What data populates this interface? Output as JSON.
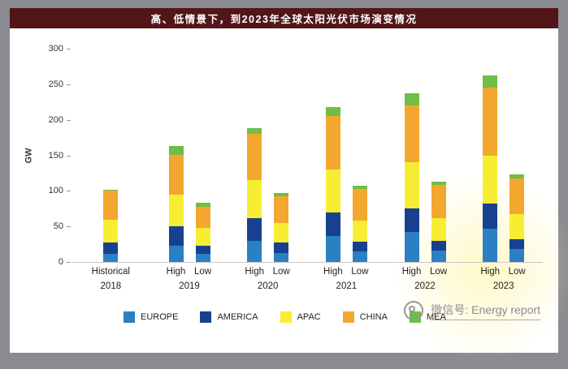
{
  "header": {
    "title": "高、低情景下，到2023年全球太阳光伏市场演变情况"
  },
  "chart_data": {
    "type": "bar",
    "stacked": true,
    "title": "高、低情景下，到2023年全球太阳光伏市场演变情况",
    "ylabel": "GW",
    "xlabel": "",
    "ylim": [
      0,
      300
    ],
    "yticks": [
      0,
      50,
      100,
      150,
      200,
      250,
      300
    ],
    "grid": false,
    "legend_position": "bottom",
    "series": [
      "EUROPE",
      "AMERICA",
      "APAC",
      "CHINA",
      "MEA"
    ],
    "colors": {
      "EUROPE": "#2b80c4",
      "AMERICA": "#17418f",
      "APAC": "#f7ee33",
      "CHINA": "#f3a72f",
      "MEA": "#6fbe45"
    },
    "groups": [
      {
        "year": "2018",
        "bars": [
          {
            "label": "Historical",
            "values": [
              11,
              16,
              33,
              40,
              2
            ]
          }
        ]
      },
      {
        "year": "2019",
        "bars": [
          {
            "label": "High",
            "values": [
              23,
              27,
              45,
              55,
              13
            ]
          },
          {
            "label": "Low",
            "values": [
              12,
              11,
              25,
              30,
              5
            ]
          }
        ]
      },
      {
        "year": "2020",
        "bars": [
          {
            "label": "High",
            "values": [
              30,
              32,
              53,
              65,
              8
            ]
          },
          {
            "label": "Low",
            "values": [
              13,
              14,
              28,
              38,
              4
            ]
          }
        ]
      },
      {
        "year": "2021",
        "bars": [
          {
            "label": "High",
            "values": [
              37,
              33,
              60,
              75,
              13
            ]
          },
          {
            "label": "Low",
            "values": [
              15,
              13,
              30,
              45,
              4
            ]
          }
        ]
      },
      {
        "year": "2022",
        "bars": [
          {
            "label": "High",
            "values": [
              42,
              33,
              65,
              80,
              17
            ]
          },
          {
            "label": "Low",
            "values": [
              16,
              14,
              32,
              46,
              5
            ]
          }
        ]
      },
      {
        "year": "2023",
        "bars": [
          {
            "label": "High",
            "values": [
              47,
              35,
              68,
              95,
              17
            ]
          },
          {
            "label": "Low",
            "values": [
              18,
              14,
              35,
              50,
              6
            ]
          }
        ]
      }
    ]
  },
  "legend": {
    "items": [
      {
        "label": "EUROPE",
        "color": "#2b80c4"
      },
      {
        "label": "AMERICA",
        "color": "#17418f"
      },
      {
        "label": "APAC",
        "color": "#f7ee33"
      },
      {
        "label": "CHINA",
        "color": "#f3a72f"
      },
      {
        "label": "MEA",
        "color": "#6fbe45"
      }
    ]
  },
  "watermark": {
    "text": "微信号: Energy report"
  }
}
